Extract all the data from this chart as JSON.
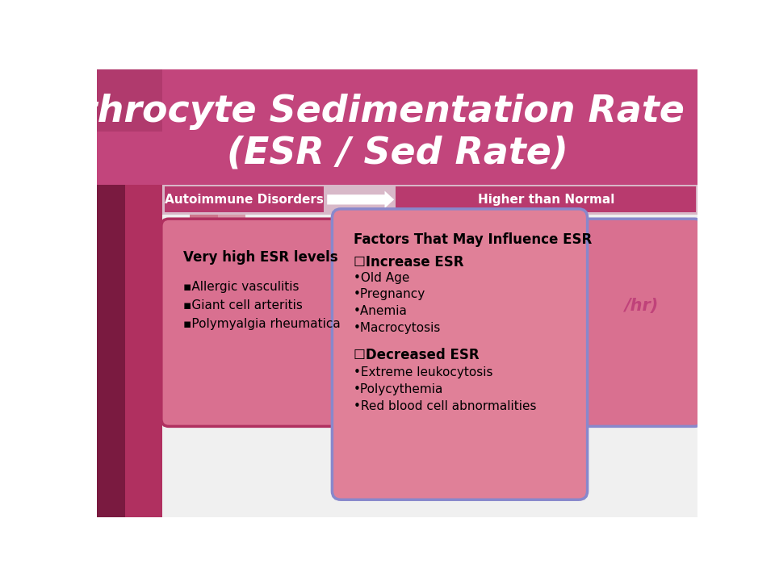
{
  "title_line1": "Erythrocyte Sedimentation Rate Test",
  "title_line2": "(ESR / Sed Rate)",
  "title_bg_color": "#c2457c",
  "title_text_color": "#ffffff",
  "bg_color": "#f5f5f5",
  "header_bg_color": "#d8c0cc",
  "header_bar_color": "#b83a6e",
  "left_label": "Autoimmune Disorders",
  "right_label": "Higher than Normal",
  "left_panel_color": "#9e2255",
  "left_panel2_color": "#c0507a",
  "box1_bg": "#d97090",
  "box1_border": "#b03060",
  "box1_title": "Very high ESR levels",
  "box1_items": [
    "▪Allergic vasculitis",
    "▪Giant cell arteritis",
    "▪Polymyalgia rheumatica"
  ],
  "box2_bg": "#e08098",
  "box2_border": "#8888cc",
  "box2_title": "Factors That May Influence ESR",
  "box2_increase_title": "☐Increase ESR",
  "box2_increase_items": [
    "•Old Age",
    "•Pregnancy",
    "•Anemia",
    "•Macrocytosis"
  ],
  "box2_decrease_title": "☐Decreased ESR",
  "box2_decrease_items": [
    "•Extreme leukocytosis",
    "•Polycythemia",
    "•Red blood cell abnormalities"
  ],
  "box3_bg": "#d97090",
  "box3_border": "#8888cc",
  "box3_partial_text": "/hr)",
  "panel_dark": "#7a1a40",
  "panel_mid": "#b03060"
}
